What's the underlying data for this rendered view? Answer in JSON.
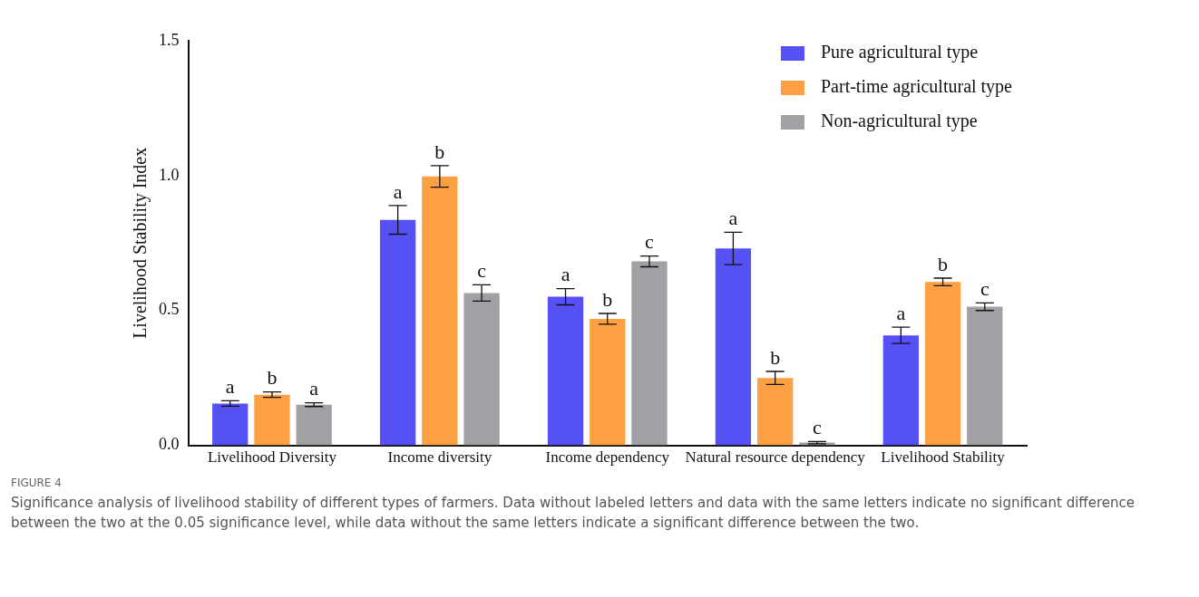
{
  "chart_data": {
    "type": "bar",
    "ylabel": "Livelihood Stability Index",
    "categories": [
      "Livelihood Diversity",
      "Income diversity",
      "Income dependency",
      "Natural resource dependency",
      "Livelihood Stability"
    ],
    "series": [
      {
        "name": "Pure agricultural type",
        "color": "#5551f5",
        "values": [
          0.155,
          0.836,
          0.551,
          0.73,
          0.408
        ],
        "errors": [
          0.01,
          0.053,
          0.03,
          0.06,
          0.03
        ],
        "value_labels": [
          "a",
          "a",
          "a",
          "a",
          "a"
        ]
      },
      {
        "name": "Part-time agricultural type",
        "color": "#fca043",
        "values": [
          0.188,
          0.997,
          0.469,
          0.25,
          0.606
        ],
        "errors": [
          0.01,
          0.04,
          0.02,
          0.024,
          0.014
        ],
        "value_labels": [
          "b",
          "b",
          "b",
          "b",
          "b"
        ]
      },
      {
        "name": "Non-agricultural type",
        "color": "#a0a0a5",
        "values": [
          0.151,
          0.565,
          0.682,
          0.01,
          0.514
        ],
        "errors": [
          0.007,
          0.03,
          0.02,
          0.004,
          0.014
        ],
        "value_labels": [
          "a",
          "c",
          "c",
          "c",
          "c"
        ]
      }
    ],
    "ylim": [
      0,
      1.5
    ],
    "yticks": [
      {
        "value": 0,
        "label": "0.0"
      },
      {
        "value": 0.5,
        "label": "0.5"
      },
      {
        "value": 1,
        "label": "1.0"
      },
      {
        "value": 1.5,
        "label": "1.5"
      }
    ],
    "grid": false,
    "legend": "top right",
    "annotations": [
      "FIGURE 4",
      "Significance analysis of livelihood stability of different types of farmers. Data without labeled letters and data with the same letters indicate no significant difference between the two at the 0.05 significance level, while data without the same letters indicate a significant difference between the two."
    ]
  }
}
